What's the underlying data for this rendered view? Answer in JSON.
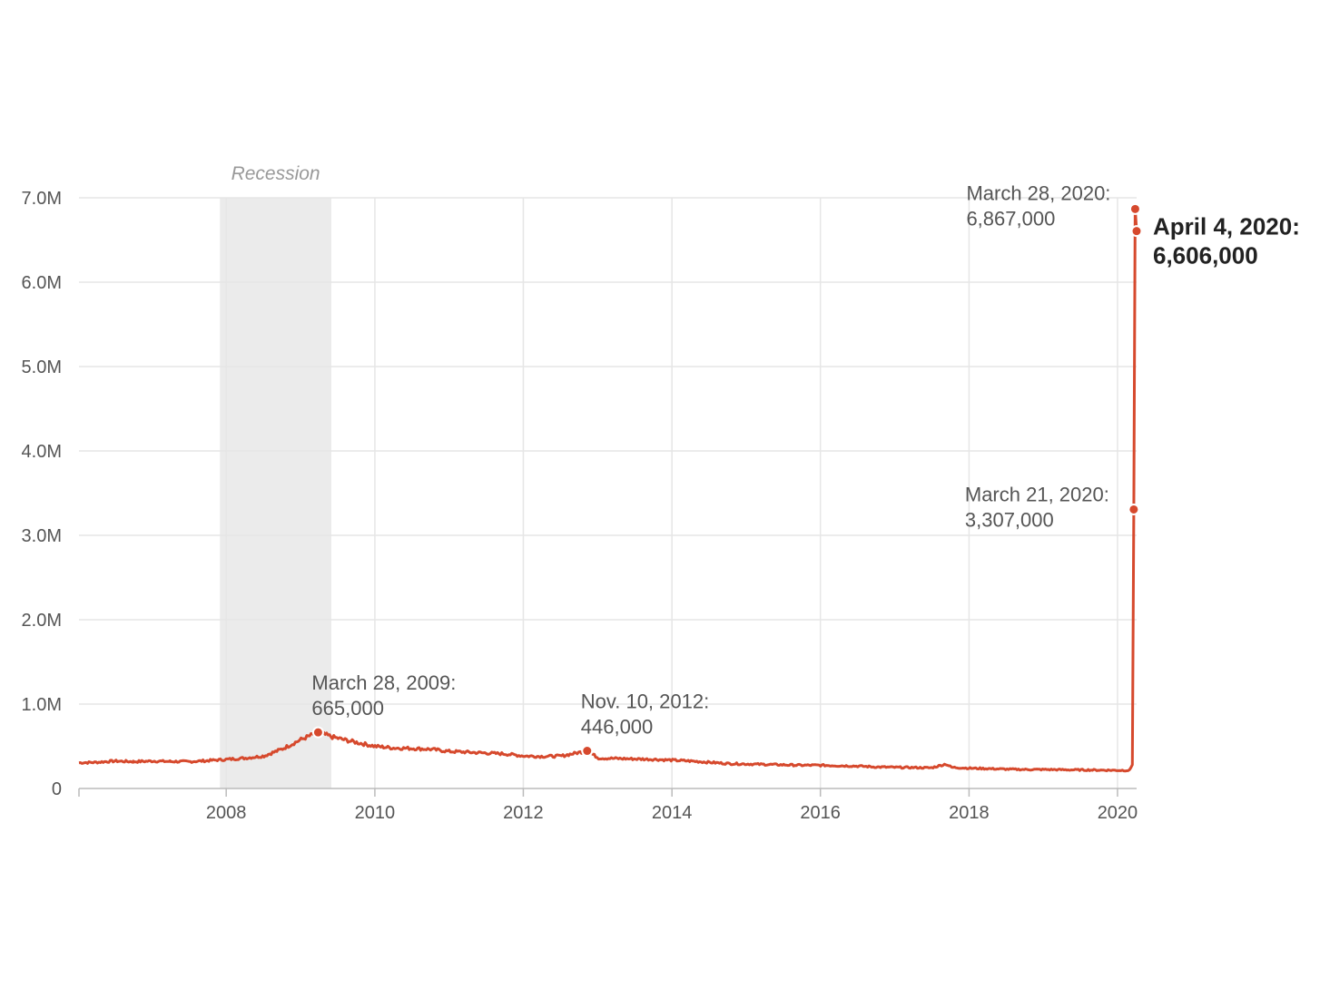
{
  "chart_data": {
    "type": "line",
    "title": "",
    "xlabel": "",
    "ylabel": "",
    "x_range": [
      "2006-01-07",
      "2020-04-04"
    ],
    "ylim": [
      0,
      7000000
    ],
    "grid": true,
    "colors": {
      "line": "#d6492d",
      "recession": "#ebebeb",
      "grid": "#e6e6e6",
      "axis": "#bbbbbb"
    },
    "y_ticks": [
      {
        "value": 0,
        "label": "0"
      },
      {
        "value": 1000000,
        "label": "1.0M"
      },
      {
        "value": 2000000,
        "label": "2.0M"
      },
      {
        "value": 3000000,
        "label": "3.0M"
      },
      {
        "value": 4000000,
        "label": "4.0M"
      },
      {
        "value": 5000000,
        "label": "5.0M"
      },
      {
        "value": 6000000,
        "label": "6.0M"
      },
      {
        "value": 7000000,
        "label": "7.0M"
      }
    ],
    "x_ticks": [
      {
        "value": "2008-01-01",
        "label": "2008"
      },
      {
        "value": "2010-01-01",
        "label": "2010"
      },
      {
        "value": "2012-01-01",
        "label": "2012"
      },
      {
        "value": "2014-01-01",
        "label": "2014"
      },
      {
        "value": "2016-01-01",
        "label": "2016"
      },
      {
        "value": "2018-01-01",
        "label": "2018"
      },
      {
        "value": "2020-01-01",
        "label": "2020"
      }
    ],
    "recession": {
      "start": "2007-12-01",
      "end": "2009-06-01",
      "label": "Recession"
    },
    "series": [
      {
        "name": "",
        "points": [
          [
            "2006-01-07",
            305000
          ],
          [
            "2006-04-01",
            310000
          ],
          [
            "2006-07-01",
            325000
          ],
          [
            "2006-10-01",
            318000
          ],
          [
            "2007-01-06",
            325000
          ],
          [
            "2007-04-01",
            320000
          ],
          [
            "2007-07-01",
            318000
          ],
          [
            "2007-10-01",
            330000
          ],
          [
            "2008-01-05",
            345000
          ],
          [
            "2008-04-05",
            360000
          ],
          [
            "2008-07-05",
            385000
          ],
          [
            "2008-10-04",
            470000
          ],
          [
            "2009-01-03",
            580000
          ],
          [
            "2009-03-28",
            665000
          ],
          [
            "2009-06-06",
            610000
          ],
          [
            "2009-09-05",
            560000
          ],
          [
            "2010-01-02",
            500000
          ],
          [
            "2010-04-03",
            480000
          ],
          [
            "2010-07-03",
            475000
          ],
          [
            "2010-10-02",
            465000
          ],
          [
            "2011-01-01",
            440000
          ],
          [
            "2011-04-02",
            430000
          ],
          [
            "2011-07-02",
            420000
          ],
          [
            "2011-10-01",
            410000
          ],
          [
            "2012-01-07",
            385000
          ],
          [
            "2012-04-07",
            380000
          ],
          [
            "2012-07-07",
            385000
          ],
          [
            "2012-11-10",
            446000
          ],
          [
            "2013-01-05",
            360000
          ],
          [
            "2013-04-06",
            355000
          ],
          [
            "2013-07-06",
            350000
          ],
          [
            "2013-10-05",
            345000
          ],
          [
            "2014-01-04",
            335000
          ],
          [
            "2014-04-05",
            325000
          ],
          [
            "2014-07-05",
            310000
          ],
          [
            "2014-10-04",
            295000
          ],
          [
            "2015-01-03",
            290000
          ],
          [
            "2015-04-04",
            285000
          ],
          [
            "2015-07-04",
            280000
          ],
          [
            "2015-10-03",
            275000
          ],
          [
            "2016-01-02",
            275000
          ],
          [
            "2016-04-02",
            270000
          ],
          [
            "2016-07-02",
            265000
          ],
          [
            "2016-10-01",
            255000
          ],
          [
            "2017-01-07",
            250000
          ],
          [
            "2017-04-01",
            248000
          ],
          [
            "2017-07-01",
            245000
          ],
          [
            "2017-09-09",
            290000
          ],
          [
            "2017-10-07",
            250000
          ],
          [
            "2018-01-06",
            240000
          ],
          [
            "2018-04-07",
            235000
          ],
          [
            "2018-07-07",
            228000
          ],
          [
            "2018-10-06",
            225000
          ],
          [
            "2019-01-05",
            225000
          ],
          [
            "2019-04-06",
            222000
          ],
          [
            "2019-07-06",
            220000
          ],
          [
            "2019-10-05",
            218000
          ],
          [
            "2020-01-04",
            215000
          ],
          [
            "2020-02-29",
            215000
          ],
          [
            "2020-03-14",
            282000
          ],
          [
            "2020-03-21",
            3307000
          ],
          [
            "2020-03-28",
            6867000
          ],
          [
            "2020-04-04",
            6606000
          ]
        ]
      }
    ],
    "annotations": [
      {
        "id": "mar-2009",
        "date": "2009-03-28",
        "value": 665000,
        "line1": "March 28, 2009:",
        "line2": "665,000",
        "bold": false,
        "side": "right"
      },
      {
        "id": "nov-2012",
        "date": "2012-11-10",
        "value": 446000,
        "line1": "Nov. 10, 2012:",
        "line2": "446,000",
        "bold": false,
        "side": "right"
      },
      {
        "id": "mar21-2020",
        "date": "2020-03-21",
        "value": 3307000,
        "line1": "March 21, 2020:",
        "line2": "3,307,000",
        "bold": false,
        "side": "left"
      },
      {
        "id": "mar28-2020",
        "date": "2020-03-28",
        "value": 6867000,
        "line1": "March 28, 2020:",
        "line2": "6,867,000",
        "bold": false,
        "side": "left"
      },
      {
        "id": "apr4-2020",
        "date": "2020-04-04",
        "value": 6606000,
        "line1": "April 4, 2020:",
        "line2": "6,606,000",
        "bold": true,
        "side": "right"
      }
    ]
  }
}
